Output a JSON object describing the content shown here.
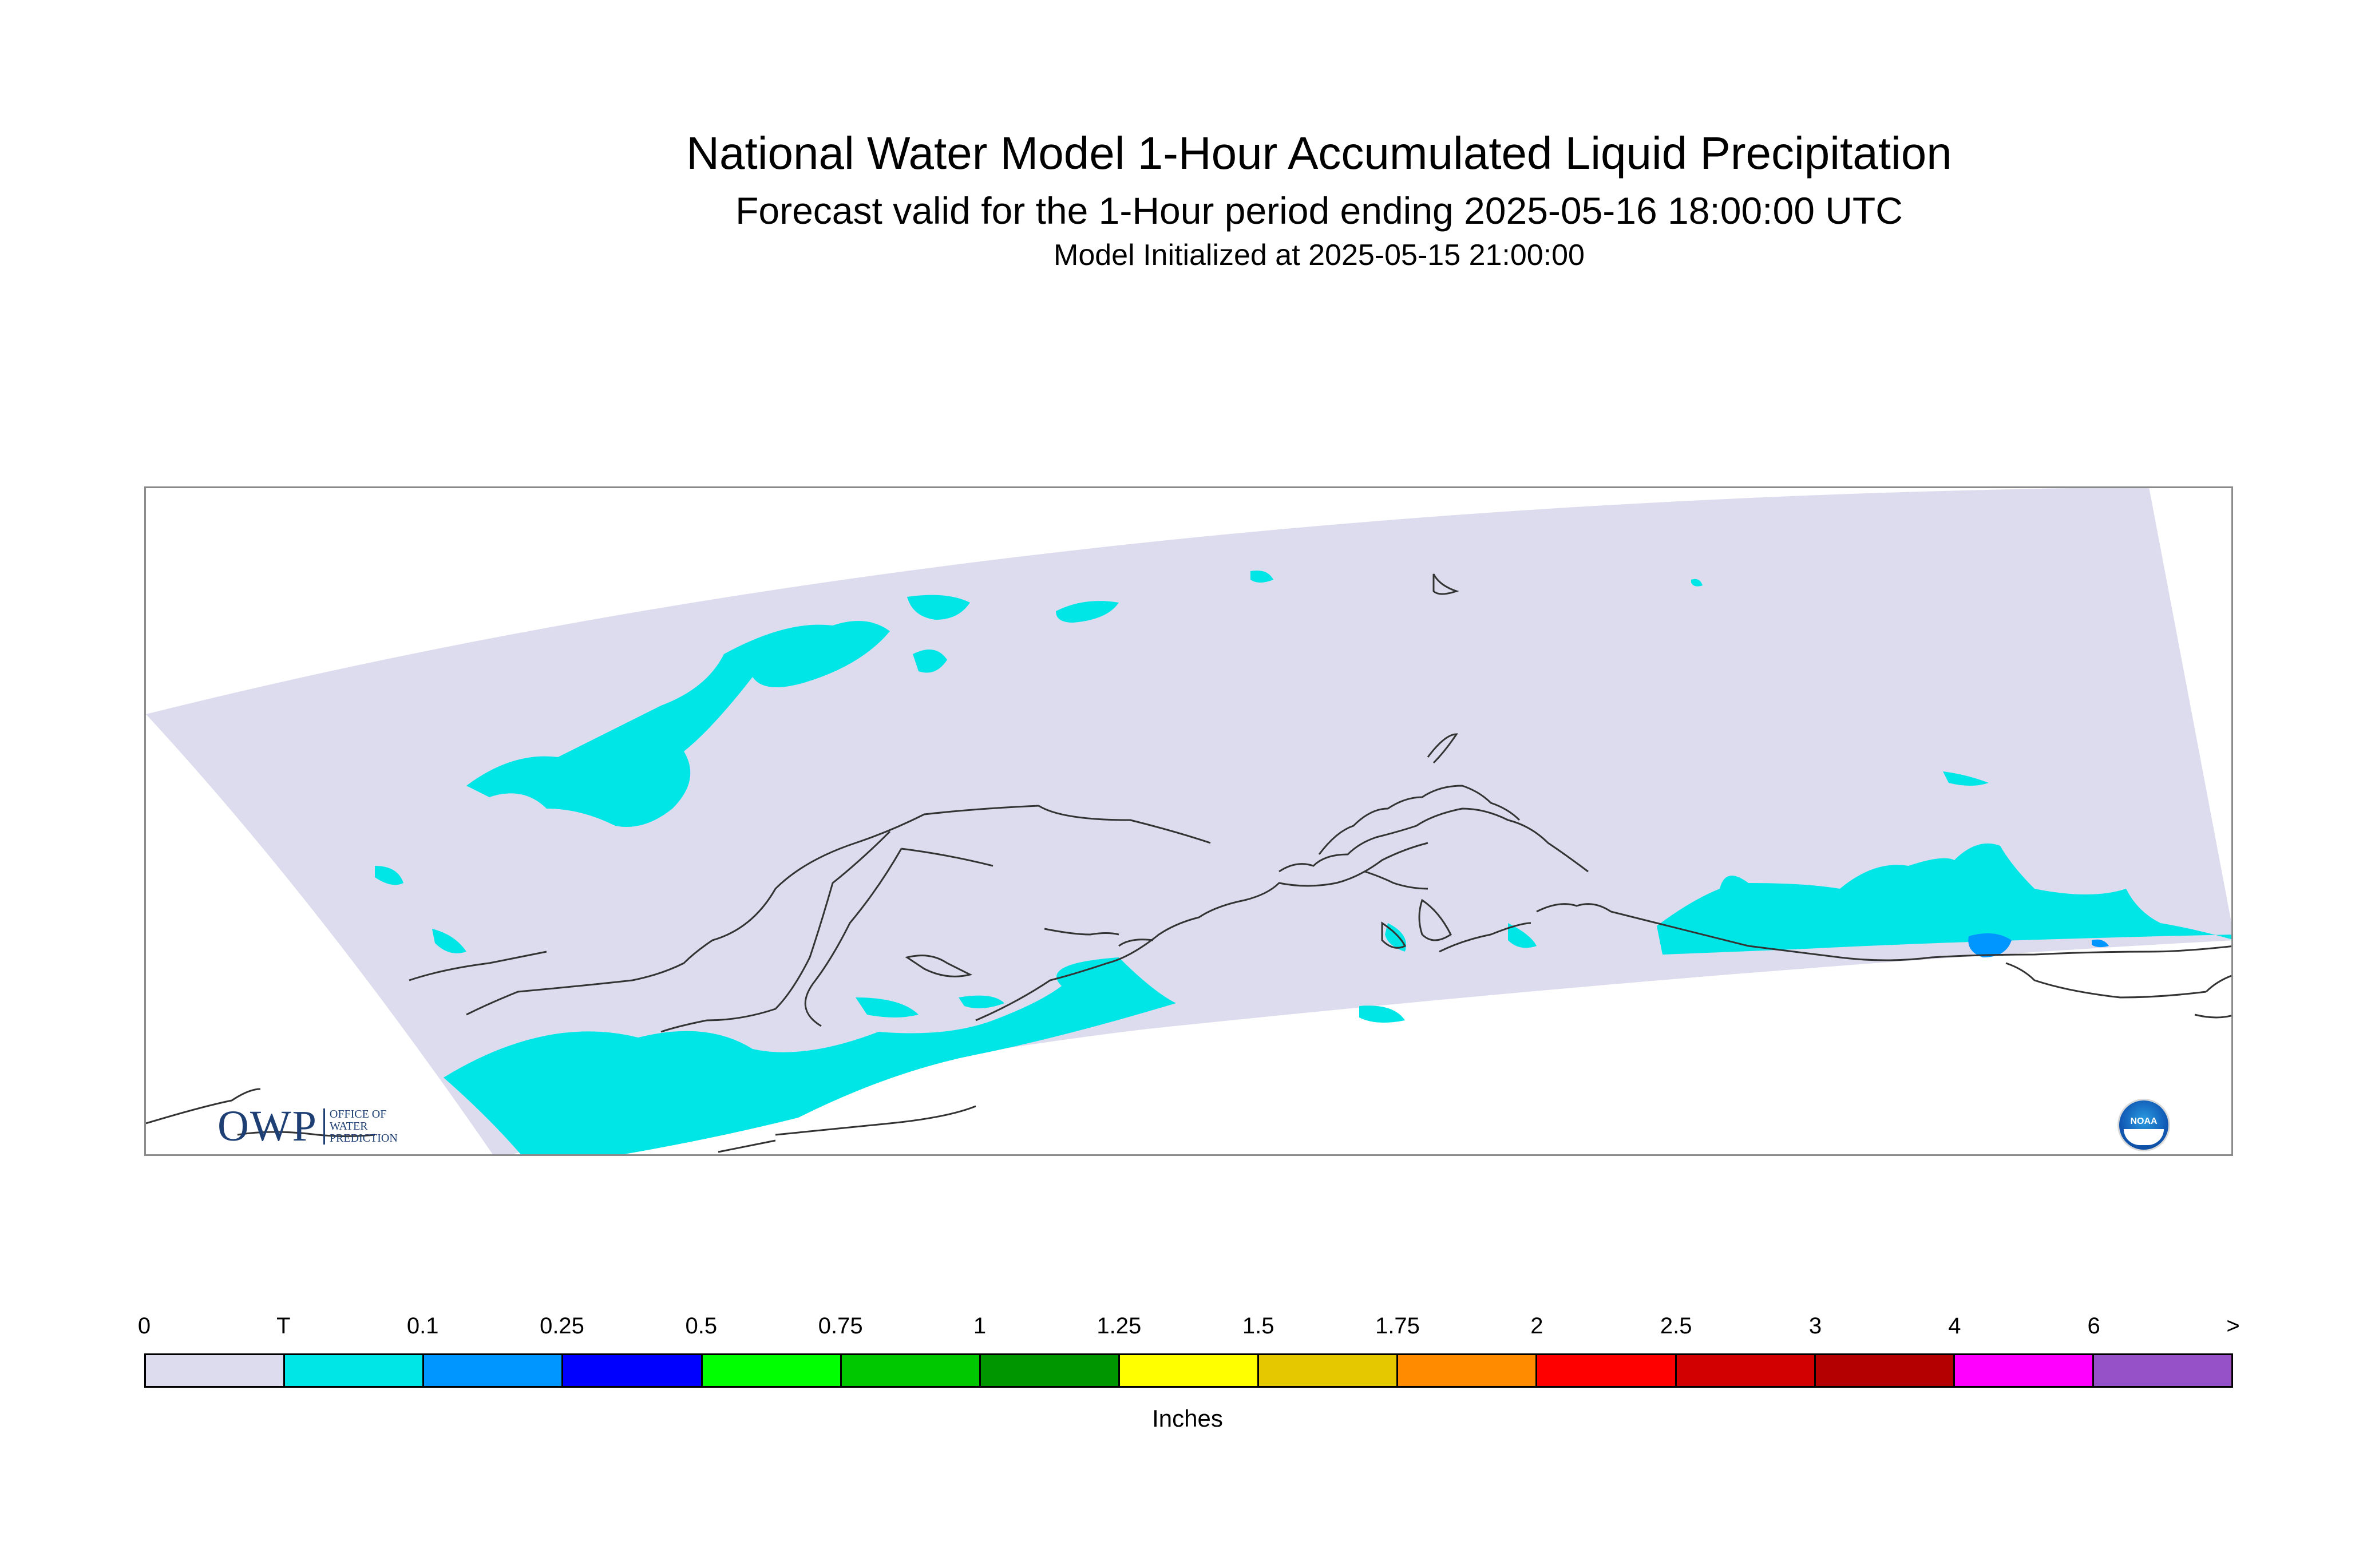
{
  "header": {
    "title": "National Water Model 1-Hour Accumulated Liquid Precipitation",
    "subtitle": "Forecast valid for the 1-Hour period ending 2025-05-16 18:00:00 UTC",
    "init": "Model Initialized at 2025-05-15 21:00:00"
  },
  "logos": {
    "owp_mark": "OWP",
    "owp_line1": "OFFICE OF",
    "owp_line2": "WATER",
    "owp_line3": "PREDICTION",
    "noaa": "NOAA"
  },
  "legend": {
    "units": "Inches",
    "ticks": [
      "0",
      "T",
      "0.1",
      "0.25",
      "0.5",
      "0.75",
      "1",
      "1.25",
      "1.5",
      "1.75",
      "2",
      "2.5",
      "3",
      "4",
      "6",
      ">"
    ],
    "colors": [
      "#dcdcee",
      "#00e6e6",
      "#0096ff",
      "#0000ff",
      "#00ff00",
      "#00c800",
      "#009600",
      "#ffff00",
      "#e6c800",
      "#ff8c00",
      "#ff0000",
      "#d20000",
      "#b40000",
      "#ff00ff",
      "#9650c8"
    ]
  },
  "map": {
    "domain_color": "#dcdcee",
    "trace_color": "#00e6e6",
    "light_color": "#0096ff",
    "coast_color": "#333333"
  }
}
